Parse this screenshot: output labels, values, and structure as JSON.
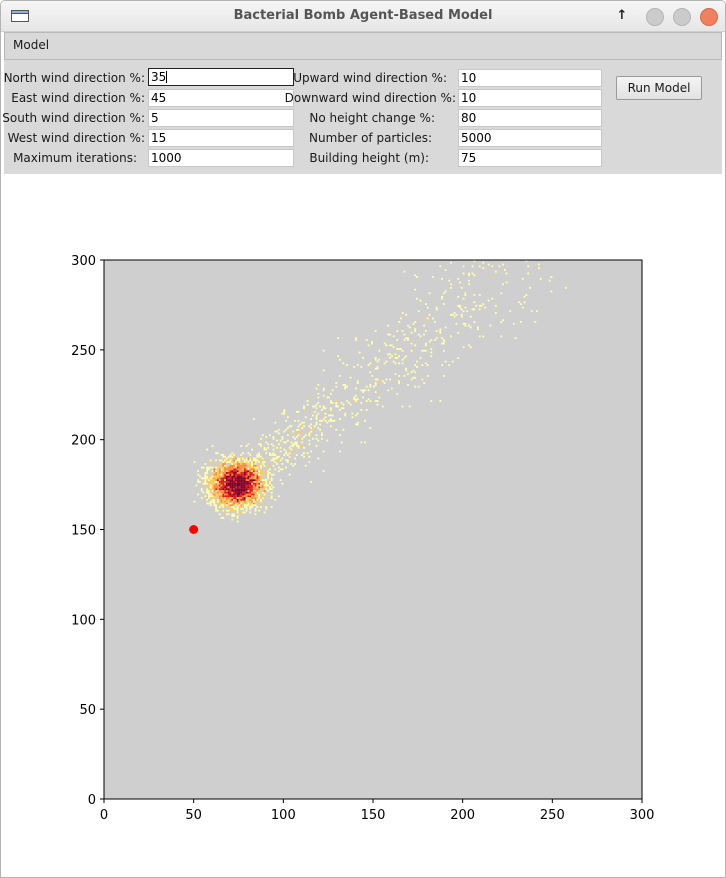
{
  "window": {
    "title": "Bacterial Bomb Agent-Based Model",
    "controls": [
      "maximize-arrow-icon",
      "minimize-icon",
      "maximize-icon",
      "close-icon"
    ],
    "close_color": "#f08060"
  },
  "menu": {
    "items": [
      "Model"
    ]
  },
  "form": {
    "left": [
      {
        "label": "North wind direction %:",
        "value": "35"
      },
      {
        "label": "East wind direction %:",
        "value": "45"
      },
      {
        "label": "South wind direction %:",
        "value": "5"
      },
      {
        "label": "West wind direction %:",
        "value": "15"
      },
      {
        "label": "Maximum iterations:",
        "value": "1000"
      }
    ],
    "right": [
      {
        "label": "Upward wind direction %:",
        "value": "10"
      },
      {
        "label": "Downward wind direction %:",
        "value": "10"
      },
      {
        "label": "No height change %:",
        "value": "80"
      },
      {
        "label": "Number of particles:",
        "value": "5000"
      },
      {
        "label": "Building height (m):",
        "value": "75"
      }
    ],
    "run_button": "Run Model"
  },
  "chart_data": {
    "type": "heatmap",
    "title": "",
    "xlabel": "",
    "ylabel": "",
    "xlim": [
      0,
      300
    ],
    "ylim": [
      0,
      300
    ],
    "xticks": [
      0,
      50,
      100,
      150,
      200,
      250,
      300
    ],
    "yticks": [
      0,
      50,
      100,
      150,
      200,
      250,
      300
    ],
    "background": "#cfcfcf",
    "colormap": [
      "#ffffb2",
      "#fecc5c",
      "#fd8d3c",
      "#e31a1c",
      "#800026"
    ],
    "bomb_point": {
      "x": 50,
      "y": 150,
      "color": "#ff0000"
    },
    "particle_cluster_center": {
      "x": 74,
      "y": 175
    },
    "particle_plume_end": {
      "x": 230,
      "y": 297
    }
  }
}
